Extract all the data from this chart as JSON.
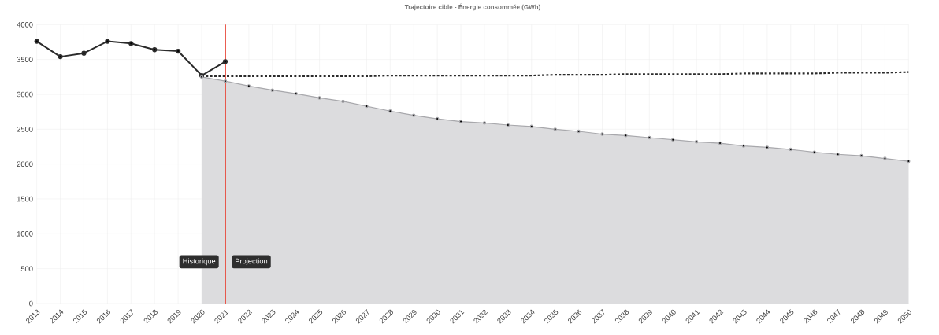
{
  "chart_data": {
    "type": "line",
    "title": "Trajectoire cible - Énergie consommée (GWh)",
    "categories": [
      "2013",
      "2014",
      "2015",
      "2016",
      "2017",
      "2018",
      "2019",
      "2020",
      "2021",
      "2022",
      "2023",
      "2024",
      "2025",
      "2026",
      "2027",
      "2028",
      "2029",
      "2030",
      "2031",
      "2032",
      "2033",
      "2034",
      "2035",
      "2036",
      "2037",
      "2038",
      "2039",
      "2040",
      "2041",
      "2042",
      "2043",
      "2044",
      "2045",
      "2046",
      "2047",
      "2048",
      "2049",
      "2050"
    ],
    "series": [
      {
        "color": "#2b2b2b",
        "values": [
          3760,
          3540,
          3590,
          3760,
          3730,
          3640,
          3620,
          3270,
          3470,
          null,
          null,
          null,
          null,
          null,
          null,
          null,
          null,
          null,
          null,
          null,
          null,
          null,
          null,
          null,
          null,
          null,
          null,
          null,
          null,
          null,
          null,
          null,
          null,
          null,
          null,
          null,
          null,
          null
        ]
      },
      {
        "type": "line",
        "line_style": "dotted",
        "marker": "none",
        "color": "#2b2b2b",
        "values": [
          null,
          null,
          null,
          null,
          null,
          null,
          null,
          3260,
          3260,
          3260,
          3260,
          3260,
          3260,
          3260,
          3260,
          3270,
          3270,
          3270,
          3270,
          3270,
          3270,
          3270,
          3280,
          3280,
          3280,
          3290,
          3290,
          3290,
          3290,
          3290,
          3300,
          3300,
          3300,
          3300,
          3310,
          3310,
          3310,
          3320
        ]
      },
      {
        "type": "area",
        "color": "#a8a8ac",
        "values": [
          null,
          null,
          null,
          null,
          null,
          null,
          null,
          3250,
          3190,
          3120,
          3060,
          3010,
          2950,
          2900,
          2830,
          2760,
          2700,
          2650,
          2610,
          2590,
          2560,
          2540,
          2500,
          2470,
          2430,
          2410,
          2380,
          2350,
          2320,
          2300,
          2260,
          2240,
          2210,
          2170,
          2140,
          2120,
          2080,
          2040
        ]
      }
    ],
    "ylim": [
      0,
      4000
    ],
    "yticks": [
      0,
      500,
      1000,
      1500,
      2000,
      2500,
      3000,
      3500,
      4000
    ],
    "grid": true,
    "marker": "circle",
    "ref_lines": [
      {
        "axis": "x",
        "value": "2021",
        "color": "#e8483a"
      }
    ],
    "annotations": [
      "Historique",
      "Projection"
    ]
  }
}
